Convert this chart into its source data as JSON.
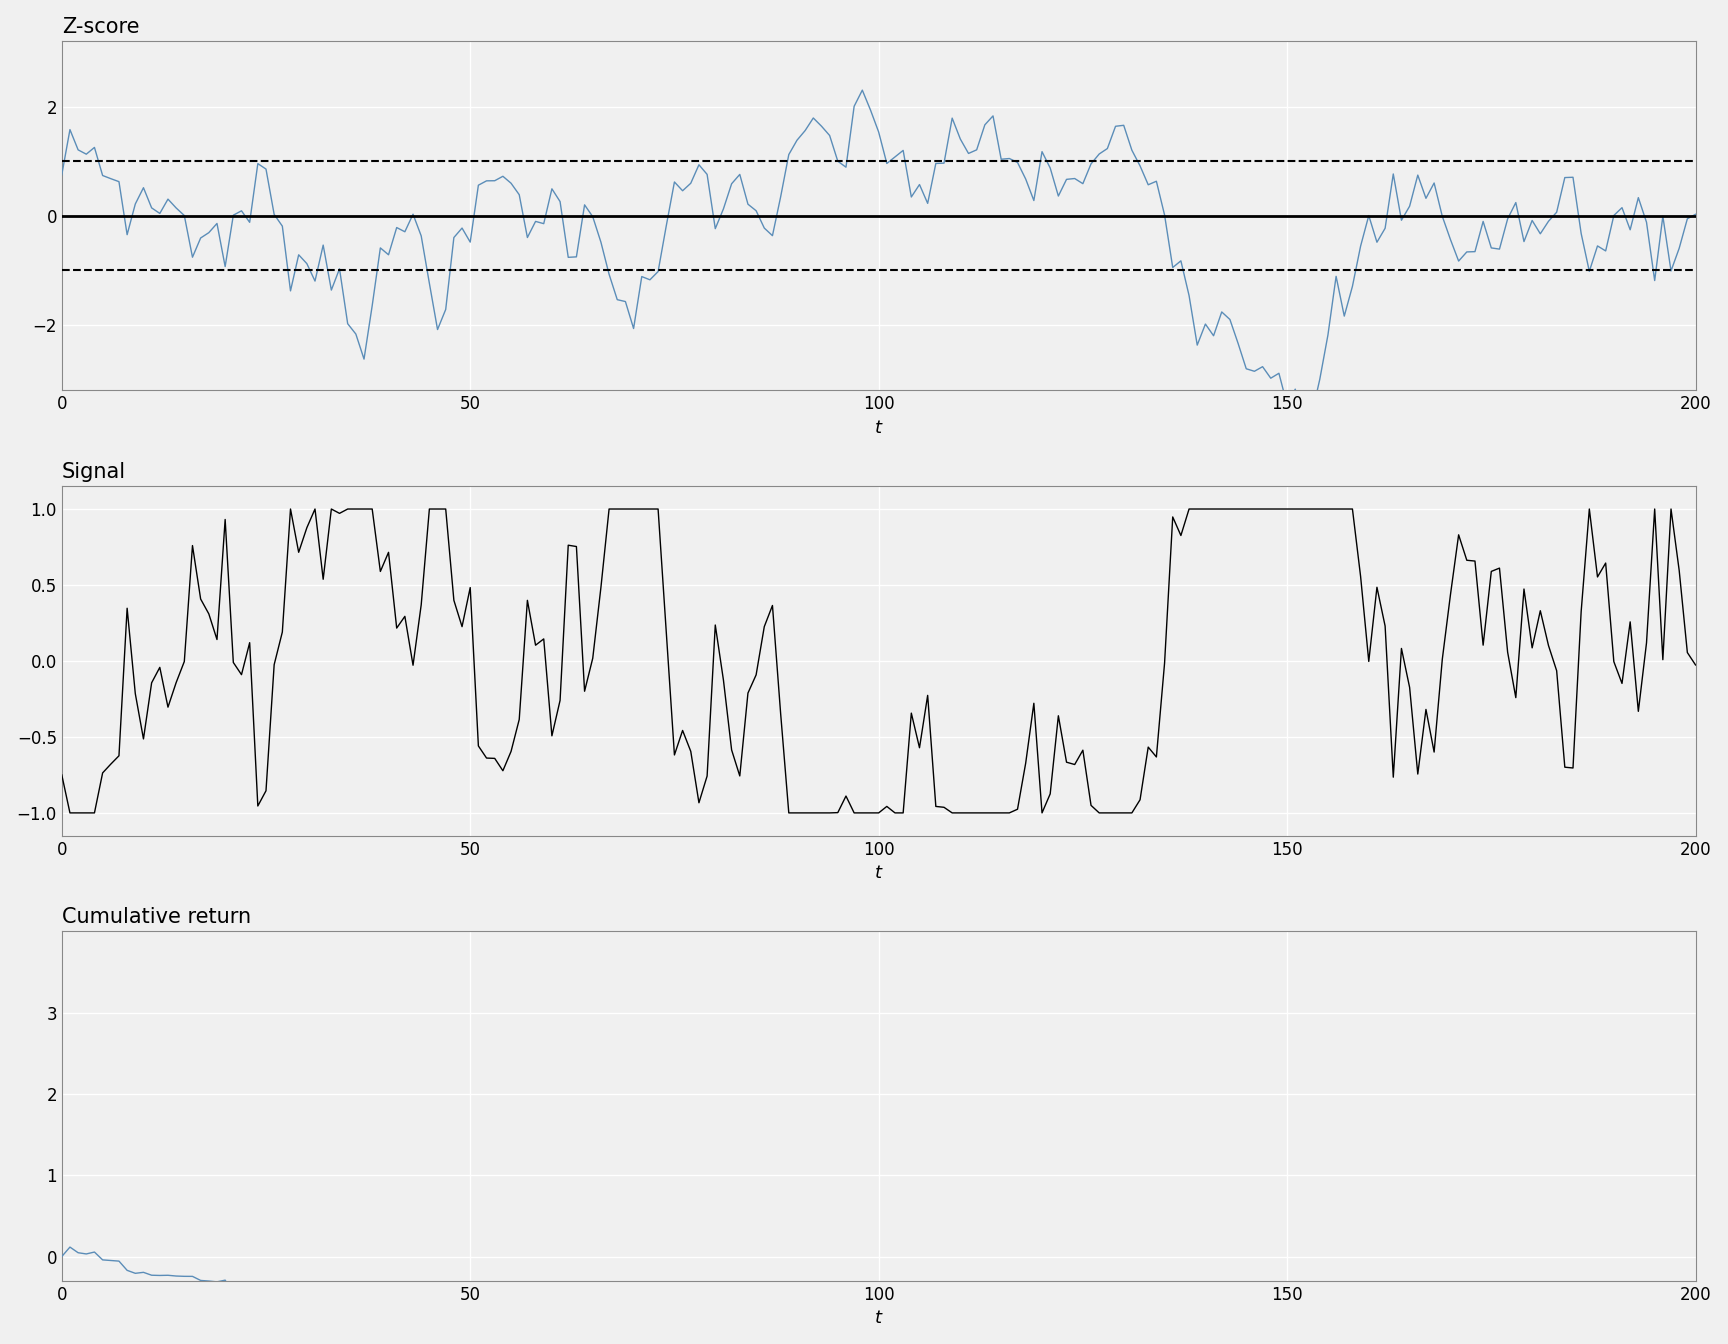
{
  "seed": 7,
  "n": 201,
  "zscore_threshold": 1.0,
  "zscore_color": "#5B8DB8",
  "signal_color": "#000000",
  "cumret_color": "#5B8DB8",
  "hline_color": "#000000",
  "dashed_color": "#000000",
  "bg_color": "#f0f0f0",
  "plot_bg_color": "#f0f0f0",
  "grid_color": "#ffffff",
  "title1": "Z-score",
  "title2": "Signal",
  "title3": "Cumulative return",
  "xlabel": "t",
  "title_fontsize": 15,
  "label_fontsize": 13,
  "tick_fontsize": 12,
  "spine_color": "#888888",
  "zscore_ylim": [
    -3.2,
    3.2
  ],
  "signal_ylim": [
    -1.15,
    1.15
  ],
  "cumret_ylim": [
    -0.3,
    4.0
  ],
  "zscore_yticks": [
    -2,
    0,
    2
  ],
  "signal_yticks": [
    -1.0,
    -0.5,
    0.0,
    0.5,
    1.0
  ],
  "cumret_yticks": [
    0,
    1,
    2,
    3
  ],
  "xticks": [
    0,
    50,
    100,
    150,
    200
  ],
  "xlim": [
    0,
    200
  ]
}
